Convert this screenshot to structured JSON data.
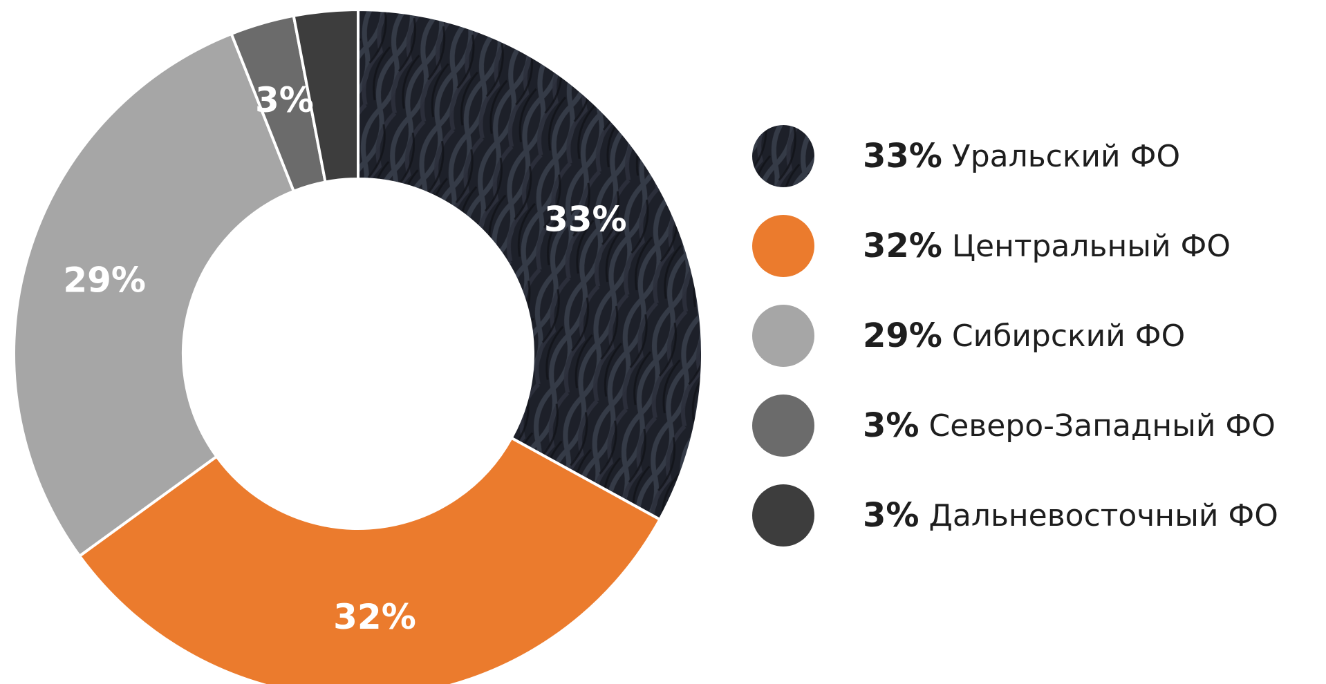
{
  "chart_data": {
    "type": "pie",
    "donut": true,
    "slices": [
      {
        "pct_label": "33%",
        "name": "Уральский ФО",
        "value": 33,
        "color": "#1f222c",
        "texture": "dark-woven-fabric",
        "show_label": true
      },
      {
        "pct_label": "32%",
        "name": "Центральный ФО",
        "value": 32,
        "color": "#eb7b2d",
        "show_label": true
      },
      {
        "pct_label": "29%",
        "name": "Сибирский ФО",
        "value": 29,
        "color": "#a6a6a6",
        "show_label": true
      },
      {
        "pct_label": "3%",
        "name": "Северо-Западный ФО",
        "value": 3,
        "color": "#6b6b6b",
        "show_label": true
      },
      {
        "pct_label": "3%",
        "name": "Дальневосточный ФО",
        "value": 3,
        "color": "#3d3d3d",
        "show_label": false
      }
    ],
    "legend_position": "right",
    "separator_color": "#ffffff"
  }
}
